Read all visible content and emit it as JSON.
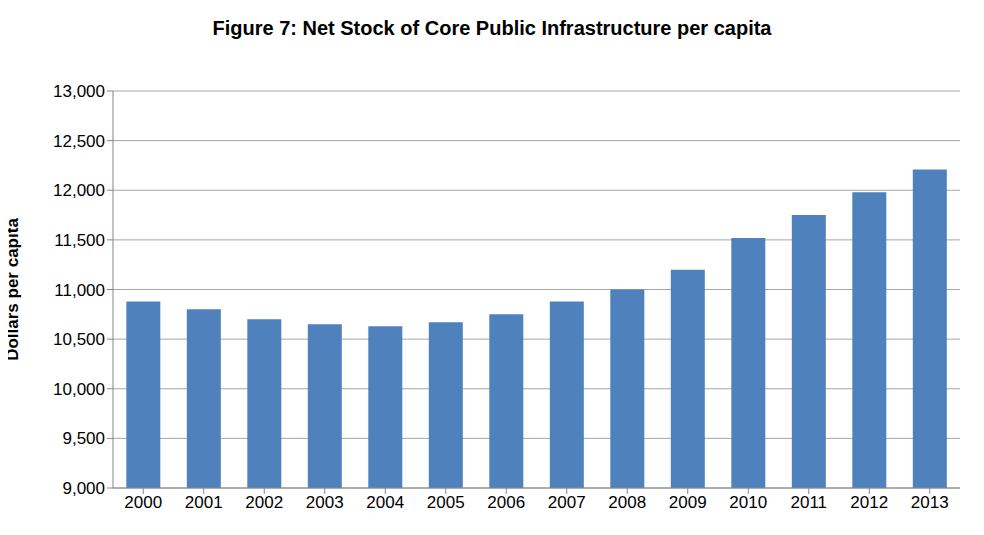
{
  "chart_data": {
    "type": "bar",
    "title": "Figure 7: Net Stock of Core Public Infrastructure per capita",
    "y_label": "Dollars per capita",
    "categories": [
      "2000",
      "2001",
      "2002",
      "2003",
      "2004",
      "2005",
      "2006",
      "2007",
      "2008",
      "2009",
      "2010",
      "2011",
      "2012",
      "2013"
    ],
    "values": [
      10880,
      10800,
      10700,
      10650,
      10630,
      10670,
      10750,
      10880,
      11000,
      11200,
      11520,
      11750,
      11980,
      12210
    ],
    "color": "#4f81bd",
    "ylim": [
      9000,
      13000
    ],
    "yticks": [
      {
        "value": 9000,
        "label": "9,000"
      },
      {
        "value": 9500,
        "label": "9,500"
      },
      {
        "value": 10000,
        "label": "10,000"
      },
      {
        "value": 10500,
        "label": "10,500"
      },
      {
        "value": 11000,
        "label": "11,000"
      },
      {
        "value": 11500,
        "label": "11,500"
      },
      {
        "value": 12000,
        "label": "12,000"
      },
      {
        "value": 12500,
        "label": "12,500"
      },
      {
        "value": 13000,
        "label": "13,000"
      }
    ],
    "grid": true
  }
}
